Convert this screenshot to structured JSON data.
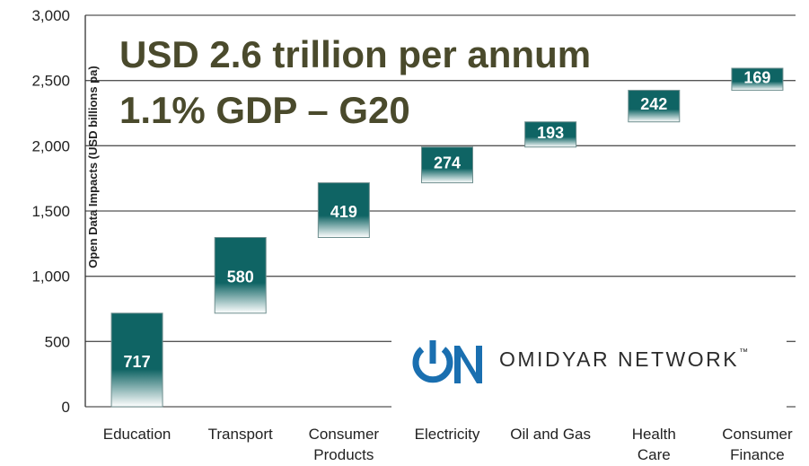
{
  "headline": {
    "line1": "USD 2.6 trillion per annum",
    "line2": "1.1% GDP – G20"
  },
  "logo": {
    "text": "OMIDYAR NETWORK",
    "trademark": "™",
    "color": "#1a6fb0",
    "icon": "power-on-logo-icon"
  },
  "colors": {
    "bar": "#0f6464",
    "bar_fade": "#ffffff",
    "grid": "#555555",
    "headline": "#4a4a2c"
  },
  "chart_data": {
    "type": "bar",
    "subtype": "waterfall",
    "title": "",
    "ylabel": "Open Data Impacts (USD billions pa)",
    "xlabel": "",
    "ylim": [
      0,
      3000
    ],
    "yticks": [
      0,
      500,
      1000,
      1500,
      2000,
      2500,
      3000
    ],
    "ytick_labels": [
      "0",
      "500",
      "1,000",
      "1,500",
      "2,000",
      "2,500",
      "3,000"
    ],
    "grid": true,
    "categories": [
      [
        "Education"
      ],
      [
        "Transport"
      ],
      [
        "Consumer",
        "Products"
      ],
      [
        "Electricity"
      ],
      [
        "Oil and Gas"
      ],
      [
        "Health",
        "Care"
      ],
      [
        "Consumer",
        "Finance"
      ]
    ],
    "values": [
      717,
      580,
      419,
      274,
      193,
      242,
      169
    ],
    "data_labels": [
      "717",
      "580",
      "419",
      "274",
      "193",
      "242",
      "169"
    ]
  }
}
